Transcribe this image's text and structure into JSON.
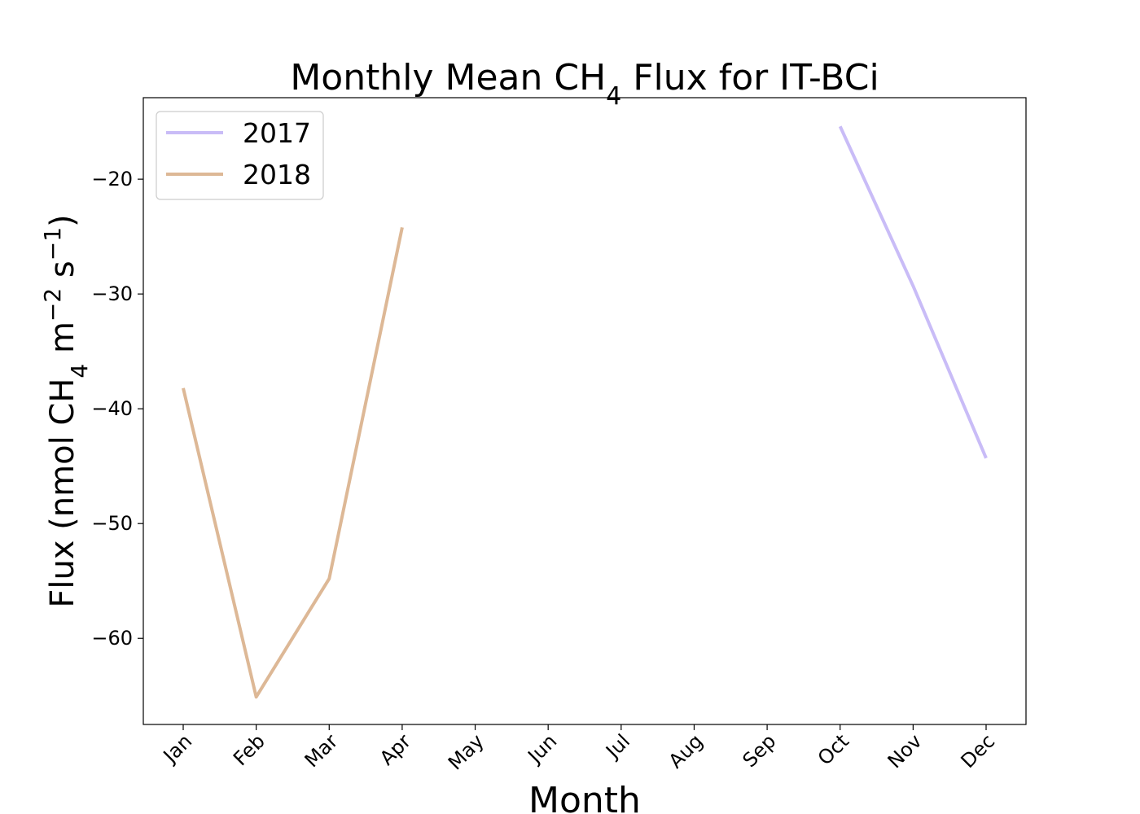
{
  "chart_data": {
    "type": "line",
    "title": "Monthly Mean CH₄ Flux for IT-BCi",
    "title_parts": {
      "pre": "Monthly Mean CH",
      "sub": "4",
      "post": " Flux for IT-BCi"
    },
    "xlabel": "Month",
    "ylabel": "Flux (nmol CH₄ m⁻² s⁻¹)",
    "ylabel_parts": {
      "a": "Flux (nmol CH",
      "b": "4",
      "c": " m",
      "d": "−2",
      "e": " s",
      "f": "−1",
      "g": ")"
    },
    "categories": [
      "Jan",
      "Feb",
      "Mar",
      "Apr",
      "May",
      "Jun",
      "Jul",
      "Aug",
      "Sep",
      "Oct",
      "Nov",
      "Dec"
    ],
    "yticks": [
      -20,
      -30,
      -40,
      -50,
      -60
    ],
    "ytick_labels": [
      "−20",
      "−30",
      "−40",
      "−50",
      "−60"
    ],
    "ylim": [
      -67.5,
      -12.9
    ],
    "grid": false,
    "legend_position": "top-left",
    "series": [
      {
        "name": "2017",
        "color": "#c9bcf7",
        "values": [
          null,
          null,
          null,
          null,
          null,
          null,
          null,
          null,
          null,
          -15.4,
          -29.3,
          -44.3
        ]
      },
      {
        "name": "2018",
        "color": "#ddb896",
        "values": [
          -38.2,
          -65.1,
          -54.8,
          -24.2,
          null,
          null,
          null,
          null,
          null,
          null,
          null,
          null
        ]
      }
    ]
  }
}
